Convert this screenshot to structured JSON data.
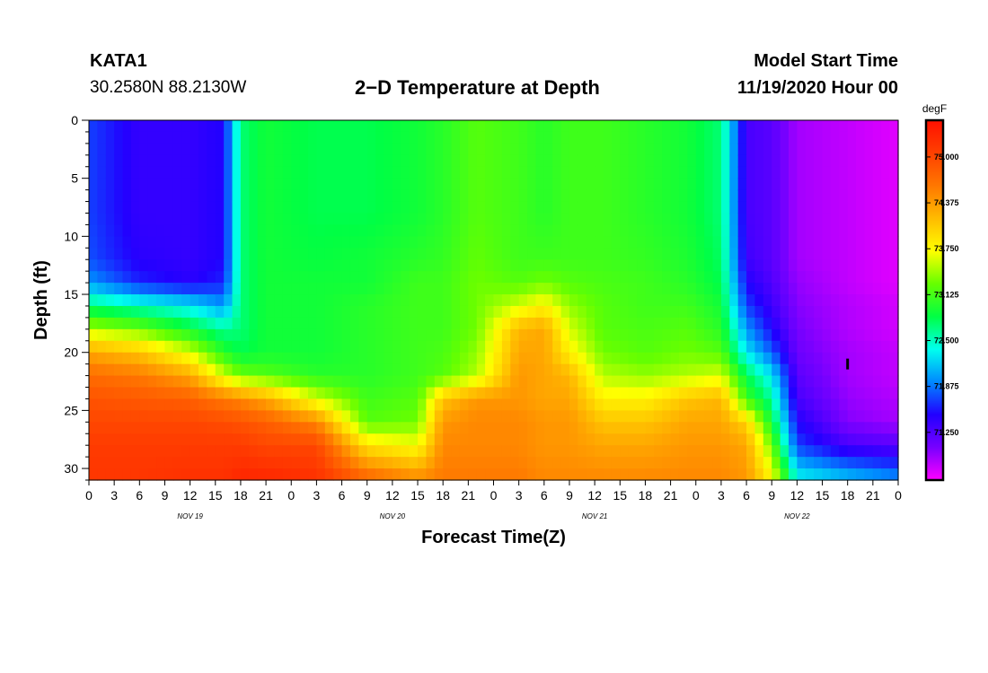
{
  "header": {
    "station": "KATA1",
    "coordinates": "30.2580N 88.2130W",
    "title": "2−D Temperature at Depth",
    "model_start_label": "Model Start Time",
    "model_start_value": "11/19/2020 Hour 00"
  },
  "chart_data": {
    "type": "heatmap",
    "title": "2−D Temperature at Depth",
    "xlabel": "Forecast Time(Z)",
    "ylabel": "Depth (ft)",
    "x_tick_labels": [
      "0",
      "3",
      "6",
      "9",
      "12",
      "15",
      "18",
      "21",
      "0",
      "3",
      "6",
      "9",
      "12",
      "15",
      "18",
      "21",
      "0",
      "3",
      "6",
      "9",
      "12",
      "15",
      "18",
      "21",
      "0",
      "3",
      "6",
      "9",
      "12",
      "15",
      "18",
      "21",
      "0"
    ],
    "x_date_labels": [
      "NOV 19",
      "NOV 20",
      "NOV 21",
      "NOV 22"
    ],
    "x_range_hours": [
      0,
      96
    ],
    "y_ticks": [
      0,
      5,
      10,
      15,
      20,
      25,
      30
    ],
    "y_range_ft": [
      0,
      31
    ],
    "y_inverted": true,
    "colorbar": {
      "unit": "degF",
      "tick_labels": [
        "75.000",
        "74.375",
        "73.750",
        "73.125",
        "72.500",
        "71.875",
        "71.250"
      ],
      "range": [
        70.6,
        75.5
      ],
      "colors": [
        "#ff00ff",
        "#7700ff",
        "#2200ff",
        "#0088ff",
        "#00ffee",
        "#00ff44",
        "#66ff00",
        "#ffff00",
        "#ffbb00",
        "#ff7700",
        "#ff4000",
        "#ff1000"
      ]
    },
    "columns_temperature_profiles_degF": {
      "depths_ft": [
        0,
        4,
        8,
        12,
        14,
        16,
        18,
        20,
        22,
        24,
        26,
        28,
        31
      ],
      "profiles": [
        {
          "hour": 0,
          "t": [
            71.7,
            71.7,
            71.7,
            71.75,
            72.0,
            72.7,
            73.5,
            74.3,
            74.7,
            74.9,
            75.0,
            75.1,
            75.15
          ]
        },
        {
          "hour": 6,
          "t": [
            71.4,
            71.4,
            71.4,
            71.45,
            71.6,
            72.5,
            73.3,
            74.1,
            74.6,
            74.85,
            75.0,
            75.1,
            75.15
          ]
        },
        {
          "hour": 12,
          "t": [
            71.4,
            71.4,
            71.4,
            71.4,
            71.45,
            72.3,
            72.9,
            73.6,
            74.3,
            74.8,
            75.0,
            75.1,
            75.2
          ]
        },
        {
          "hour": 16,
          "t": [
            71.5,
            71.5,
            71.5,
            71.5,
            71.6,
            72.0,
            72.6,
            73.0,
            73.6,
            74.6,
            74.95,
            75.1,
            75.2
          ]
        },
        {
          "hour": 18,
          "t": [
            72.7,
            72.7,
            72.7,
            72.7,
            72.7,
            72.7,
            72.7,
            72.8,
            73.3,
            74.5,
            74.9,
            75.1,
            75.3
          ]
        },
        {
          "hour": 21,
          "t": [
            72.9,
            72.9,
            72.9,
            72.9,
            72.9,
            72.9,
            72.9,
            72.9,
            73.2,
            74.3,
            74.8,
            75.0,
            75.3
          ]
        },
        {
          "hour": 27,
          "t": [
            72.8,
            72.8,
            72.8,
            72.85,
            72.9,
            72.9,
            72.9,
            72.9,
            73.0,
            73.6,
            74.5,
            75.0,
            75.2
          ]
        },
        {
          "hour": 33,
          "t": [
            72.8,
            72.8,
            72.8,
            72.9,
            72.9,
            73.0,
            73.0,
            73.0,
            73.0,
            73.1,
            73.2,
            73.9,
            74.8
          ]
        },
        {
          "hour": 39,
          "t": [
            72.9,
            72.9,
            72.9,
            73.0,
            73.1,
            73.1,
            73.1,
            73.1,
            73.1,
            73.2,
            73.3,
            73.7,
            74.5
          ]
        },
        {
          "hour": 42,
          "t": [
            73.0,
            73.0,
            73.0,
            73.05,
            73.1,
            73.1,
            73.1,
            73.15,
            73.2,
            74.1,
            74.4,
            74.5,
            74.6
          ]
        },
        {
          "hour": 46,
          "t": [
            73.2,
            73.2,
            73.2,
            73.25,
            73.3,
            73.3,
            73.3,
            73.4,
            73.5,
            74.4,
            74.5,
            74.5,
            74.6
          ]
        },
        {
          "hour": 51,
          "t": [
            73.1,
            73.1,
            73.1,
            73.1,
            73.2,
            73.6,
            74.2,
            74.3,
            74.4,
            74.4,
            74.5,
            74.5,
            74.6
          ]
        },
        {
          "hour": 54,
          "t": [
            73.0,
            73.0,
            73.0,
            73.1,
            73.3,
            73.8,
            74.3,
            74.3,
            74.3,
            74.3,
            74.4,
            74.4,
            74.5
          ]
        },
        {
          "hour": 57,
          "t": [
            73.1,
            73.1,
            73.1,
            73.1,
            73.2,
            73.4,
            73.6,
            73.8,
            74.2,
            74.3,
            74.4,
            74.4,
            74.5
          ]
        },
        {
          "hour": 61,
          "t": [
            73.1,
            73.1,
            73.1,
            73.1,
            73.15,
            73.2,
            73.2,
            73.3,
            73.5,
            73.8,
            74.1,
            74.3,
            74.5
          ]
        },
        {
          "hour": 66,
          "t": [
            73.0,
            73.0,
            73.0,
            73.05,
            73.1,
            73.1,
            73.15,
            73.2,
            73.4,
            73.8,
            74.1,
            74.3,
            74.5
          ]
        },
        {
          "hour": 71,
          "t": [
            72.9,
            72.9,
            72.9,
            72.95,
            73.0,
            73.1,
            73.2,
            73.3,
            73.5,
            74.1,
            74.3,
            74.4,
            74.5
          ]
        },
        {
          "hour": 75,
          "t": [
            72.7,
            72.7,
            72.7,
            72.75,
            72.8,
            72.9,
            73.0,
            73.2,
            73.6,
            74.2,
            74.3,
            74.4,
            74.5
          ]
        },
        {
          "hour": 78,
          "t": [
            71.3,
            71.3,
            71.3,
            71.35,
            71.5,
            71.7,
            72.0,
            72.3,
            72.8,
            73.1,
            74.0,
            74.3,
            74.4
          ]
        },
        {
          "hour": 81,
          "t": [
            71.2,
            71.2,
            71.2,
            71.2,
            71.25,
            71.35,
            71.5,
            71.8,
            72.3,
            72.6,
            72.9,
            73.3,
            73.8
          ]
        },
        {
          "hour": 84,
          "t": [
            70.9,
            70.9,
            70.9,
            70.9,
            70.95,
            71.0,
            71.05,
            71.1,
            71.2,
            71.3,
            71.5,
            71.7,
            72.4
          ]
        },
        {
          "hour": 90,
          "t": [
            70.8,
            70.8,
            70.8,
            70.8,
            70.8,
            70.85,
            70.85,
            70.9,
            70.9,
            70.95,
            71.0,
            71.3,
            72.2
          ]
        },
        {
          "hour": 96,
          "t": [
            70.7,
            70.7,
            70.7,
            70.7,
            70.7,
            70.75,
            70.75,
            70.8,
            70.8,
            70.85,
            70.9,
            71.2,
            72.0
          ]
        }
      ]
    },
    "marker": {
      "hour": 90,
      "depth_ft": 21,
      "symbol": "I"
    }
  }
}
